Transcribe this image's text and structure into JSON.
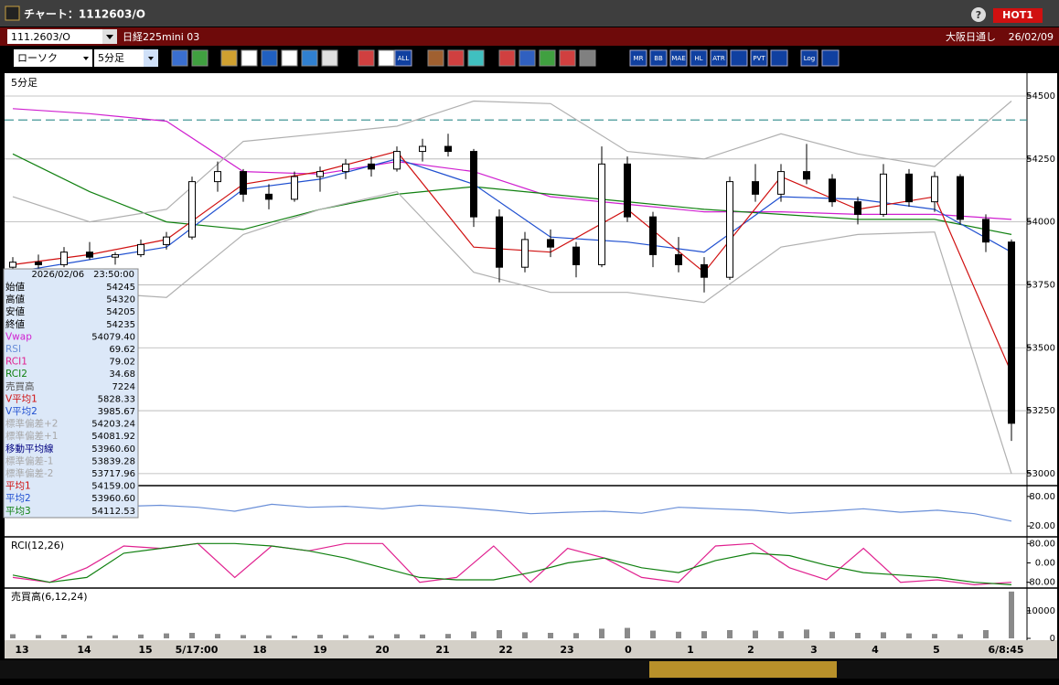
{
  "window": {
    "title": "チャート：1112603/O",
    "help": "?",
    "hot": "HOT1"
  },
  "symbol_bar": {
    "code": "111.2603/O",
    "name": "日経225mini 03",
    "session": "大阪日通し",
    "date": "26/02/09"
  },
  "toolbar": {
    "chart_type": "ローソク",
    "interval": "5分足",
    "icon_labels": [
      "ALL",
      "MR",
      "BB",
      "MAE",
      "HL",
      "ATR",
      "PVT",
      "Log"
    ]
  },
  "info_panel": {
    "datetime": "2026/02/06　23:50:00",
    "rows": [
      {
        "label": "始値",
        "value": "54245",
        "color": "#000000"
      },
      {
        "label": "高値",
        "value": "54320",
        "color": "#000000"
      },
      {
        "label": "安値",
        "value": "54205",
        "color": "#000000"
      },
      {
        "label": "終値",
        "value": "54235",
        "color": "#000000"
      },
      {
        "label": "Vwap",
        "value": "54079.40",
        "color": "#d020d0"
      },
      {
        "label": "RSI",
        "value": "69.62",
        "color": "#6a8fd8"
      },
      {
        "label": "RCI1",
        "value": "79.02",
        "color": "#e0208f"
      },
      {
        "label": "RCI2",
        "value": "34.68",
        "color": "#108010"
      },
      {
        "label": "売買高",
        "value": "7224",
        "color": "#555555"
      },
      {
        "label": "V平均1",
        "value": "5828.33",
        "color": "#d01010"
      },
      {
        "label": "V平均2",
        "value": "3985.67",
        "color": "#2050d0"
      },
      {
        "label": "標準偏差+2",
        "value": "54203.24",
        "color": "#a8a8a8"
      },
      {
        "label": "標準偏差+1",
        "value": "54081.92",
        "color": "#a8a8a8"
      },
      {
        "label": "移動平均線",
        "value": "53960.60",
        "color": "#000080"
      },
      {
        "label": "標準偏差-1",
        "value": "53839.28",
        "color": "#a8a8a8"
      },
      {
        "label": "標準偏差-2",
        "value": "53717.96",
        "color": "#a8a8a8"
      },
      {
        "label": "平均1",
        "value": "54159.00",
        "color": "#d01010"
      },
      {
        "label": "平均2",
        "value": "53960.60",
        "color": "#2050d0"
      },
      {
        "label": "平均3",
        "value": "54112.53",
        "color": "#108010"
      }
    ]
  },
  "chart_data": [
    {
      "type": "candlestick",
      "title": "5分足",
      "x_labels": [
        "13",
        "14",
        "15",
        "5/17:00",
        "18",
        "19",
        "20",
        "21",
        "22",
        "23",
        "0",
        "1",
        "2",
        "3",
        "4",
        "5",
        "6/8:45"
      ],
      "open": [
        53820,
        53840,
        53830,
        53880,
        53860,
        53870,
        53910,
        53940,
        54160,
        54200,
        54110,
        54090,
        54180,
        54200,
        54230,
        54210,
        54280,
        54300,
        54280,
        54020,
        53820,
        53930,
        53900,
        53830,
        54230,
        54020,
        53870,
        53830,
        53780,
        54160,
        54110,
        54200,
        54170,
        54080,
        54030,
        54190,
        54080,
        54180,
        54010,
        53920
      ],
      "high": [
        53860,
        53870,
        53900,
        53920,
        53880,
        53930,
        53960,
        54180,
        54240,
        54210,
        54150,
        54200,
        54220,
        54250,
        54260,
        54300,
        54330,
        54350,
        54290,
        54050,
        53960,
        53970,
        53920,
        54300,
        54260,
        54040,
        53940,
        53860,
        54180,
        54230,
        54230,
        54310,
        54190,
        54100,
        54230,
        54210,
        54200,
        54190,
        54030,
        53930
      ],
      "low": [
        53800,
        53810,
        53820,
        53850,
        53830,
        53860,
        53890,
        53930,
        54120,
        54080,
        54050,
        54080,
        54120,
        54170,
        54180,
        54200,
        54240,
        54260,
        53980,
        53760,
        53800,
        53860,
        53780,
        53820,
        54000,
        53820,
        53800,
        53720,
        53770,
        54080,
        54080,
        54150,
        54060,
        53990,
        54020,
        54060,
        54040,
        53990,
        53880,
        53130
      ],
      "close": [
        53840,
        53830,
        53880,
        53860,
        53870,
        53910,
        53940,
        54160,
        54200,
        54110,
        54090,
        54180,
        54200,
        54230,
        54210,
        54280,
        54300,
        54280,
        54020,
        53820,
        53930,
        53900,
        53830,
        54230,
        54020,
        53870,
        53830,
        53780,
        54160,
        54110,
        54200,
        54170,
        54080,
        54030,
        54190,
        54080,
        54180,
        54010,
        53920,
        53200
      ],
      "up_color": "#ffffff",
      "down_color": "#000000",
      "ylim": [
        52956,
        54580
      ],
      "yticks": [
        54500,
        54250,
        54000,
        53750,
        53500,
        53250,
        53000
      ],
      "grid": true,
      "reference_line": {
        "value": 54405,
        "color": "#2e8b8b"
      },
      "series": [
        {
          "name": "Vwap",
          "color": "#d020d0",
          "values": [
            54450,
            54430,
            54400,
            54200,
            54190,
            54240,
            54200,
            54100,
            54070,
            54040,
            54040,
            54030,
            54030,
            54010
          ]
        },
        {
          "name": "平均3",
          "color": "#108010",
          "values": [
            54270,
            54120,
            54000,
            53970,
            54050,
            54110,
            54140,
            54110,
            54080,
            54050,
            54030,
            54010,
            54010,
            53950
          ]
        },
        {
          "name": "平均2",
          "color": "#2050d0",
          "values": [
            53800,
            53850,
            53900,
            54130,
            54170,
            54250,
            54150,
            53940,
            53920,
            53880,
            54100,
            54090,
            54050,
            53880
          ]
        },
        {
          "name": "平均1",
          "color": "#d01010",
          "values": [
            53830,
            53870,
            53930,
            54150,
            54200,
            54280,
            53900,
            53880,
            54050,
            53800,
            54180,
            54050,
            54100,
            53400
          ]
        },
        {
          "name": "標準偏差+2",
          "color": "#b0b0b0",
          "values": [
            54100,
            54000,
            54050,
            54320,
            54350,
            54380,
            54480,
            54470,
            54280,
            54250,
            54350,
            54270,
            54220,
            54480
          ]
        },
        {
          "name": "標準偏差-2",
          "color": "#b0b0b0",
          "values": [
            53650,
            53720,
            53700,
            53950,
            54050,
            54120,
            53800,
            53720,
            53720,
            53680,
            53900,
            53950,
            53960,
            53000
          ]
        }
      ]
    },
    {
      "type": "line",
      "ylim": [
        0,
        100
      ],
      "yticks": [
        {
          "value": 80,
          "label": "80.00"
        },
        {
          "value": 20,
          "label": "20.00"
        }
      ],
      "series": [
        {
          "name": "RSI",
          "color": "#6a8fd8",
          "values": [
            45,
            55,
            52,
            60,
            62,
            58,
            50,
            64,
            58,
            60,
            55,
            62,
            58,
            52,
            45,
            48,
            50,
            46,
            58,
            55,
            52,
            46,
            50,
            55,
            48,
            52,
            45,
            30
          ]
        }
      ]
    },
    {
      "type": "line",
      "title": "RCI(12,26)",
      "ylim": [
        -100,
        100
      ],
      "yticks": [
        {
          "value": 80,
          "label": "80.00"
        },
        {
          "value": 0,
          "label": "0.00"
        },
        {
          "value": -80,
          "label": "-80.00"
        }
      ],
      "series": [
        {
          "name": "RCI1",
          "color": "#e0208f",
          "values": [
            -60,
            -80,
            -20,
            70,
            60,
            80,
            -60,
            70,
            50,
            80,
            80,
            -80,
            -60,
            70,
            -80,
            60,
            20,
            -60,
            -80,
            70,
            80,
            -20,
            -70,
            60,
            -80,
            -70,
            -90,
            -80
          ]
        },
        {
          "name": "RCI2",
          "color": "#108010",
          "values": [
            -50,
            -80,
            -60,
            40,
            60,
            80,
            80,
            70,
            50,
            20,
            -20,
            -60,
            -70,
            -70,
            -40,
            0,
            20,
            -20,
            -40,
            10,
            40,
            30,
            -10,
            -40,
            -50,
            -60,
            -80,
            -90
          ]
        }
      ]
    },
    {
      "type": "bar",
      "title": "売買高(6,12,24)",
      "color": "#8a8a8a",
      "ylim": [
        0,
        17600
      ],
      "yticks": [
        10000,
        0
      ],
      "values": [
        1500,
        1200,
        1300,
        1000,
        1100,
        1400,
        1800,
        2000,
        1600,
        1200,
        1100,
        1000,
        1300,
        1200,
        1100,
        1500,
        1400,
        1600,
        2500,
        3000,
        2200,
        2000,
        1900,
        3500,
        3800,
        2800,
        2400,
        2600,
        3000,
        2800,
        2600,
        3200,
        2400,
        2000,
        2200,
        1800,
        1600,
        1500,
        3000,
        17000
      ]
    }
  ]
}
